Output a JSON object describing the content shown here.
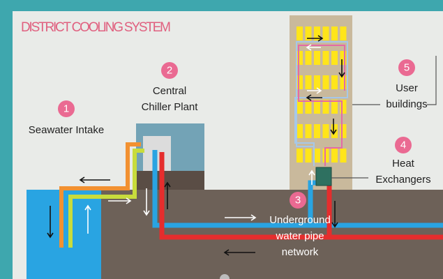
{
  "title": "DISTRICT COOLING SYSTEM",
  "nodes": [
    {
      "number": "1",
      "lines": [
        "Seawater Intake"
      ]
    },
    {
      "number": "2",
      "lines": [
        "Central",
        "Chiller Plant"
      ]
    },
    {
      "number": "3",
      "lines": [
        "Underground",
        "water pipe",
        "network"
      ]
    },
    {
      "number": "4",
      "lines": [
        "Heat",
        "Exchangers"
      ]
    },
    {
      "number": "5",
      "lines": [
        "User",
        "buildings"
      ]
    }
  ]
}
